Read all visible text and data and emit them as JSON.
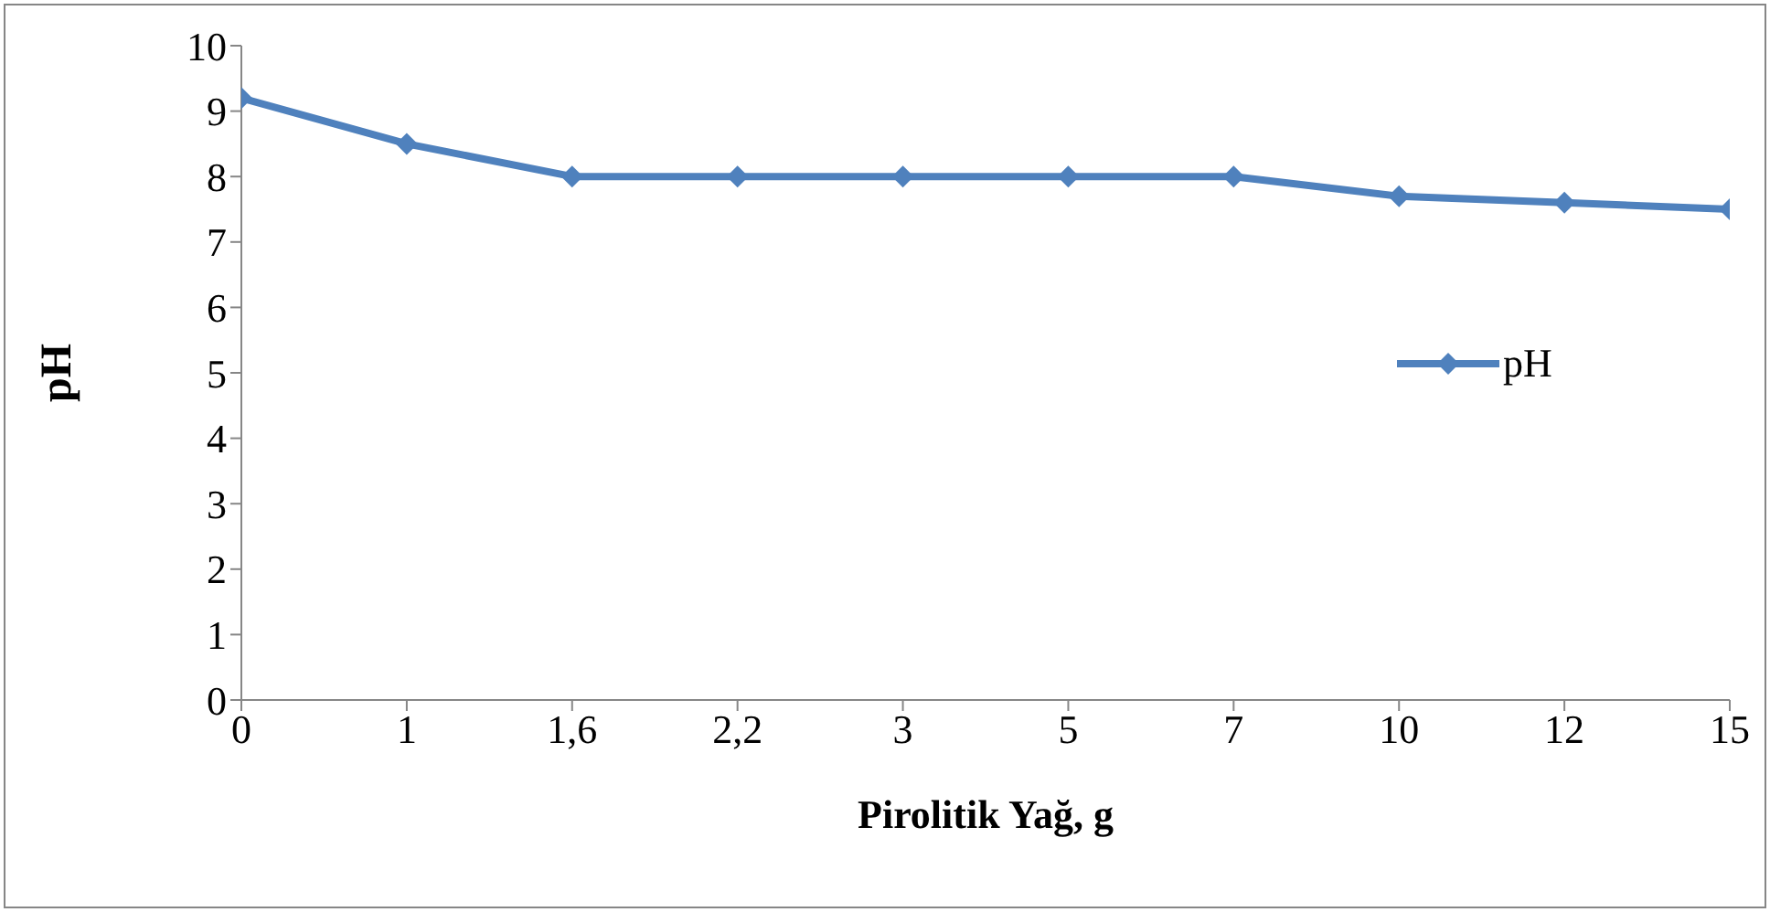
{
  "chart_data": {
    "type": "line",
    "xlabel": "Pirolitik Yağ, g",
    "ylabel": "pH",
    "categories": [
      "0",
      "1",
      "1,6",
      "2,2",
      "3",
      "5",
      "7",
      "10",
      "12",
      "15"
    ],
    "series": [
      {
        "name": "pH",
        "color": "#4f81bd",
        "values": [
          9.2,
          8.5,
          8.0,
          8.0,
          8.0,
          8.0,
          8.0,
          7.7,
          7.6,
          7.5
        ]
      }
    ],
    "ylim": [
      0,
      10
    ],
    "yticks": [
      0,
      1,
      2,
      3,
      4,
      5,
      6,
      7,
      8,
      9,
      10
    ],
    "grid": false,
    "legend": "right",
    "marker": "diamond",
    "line_style": "solid"
  }
}
